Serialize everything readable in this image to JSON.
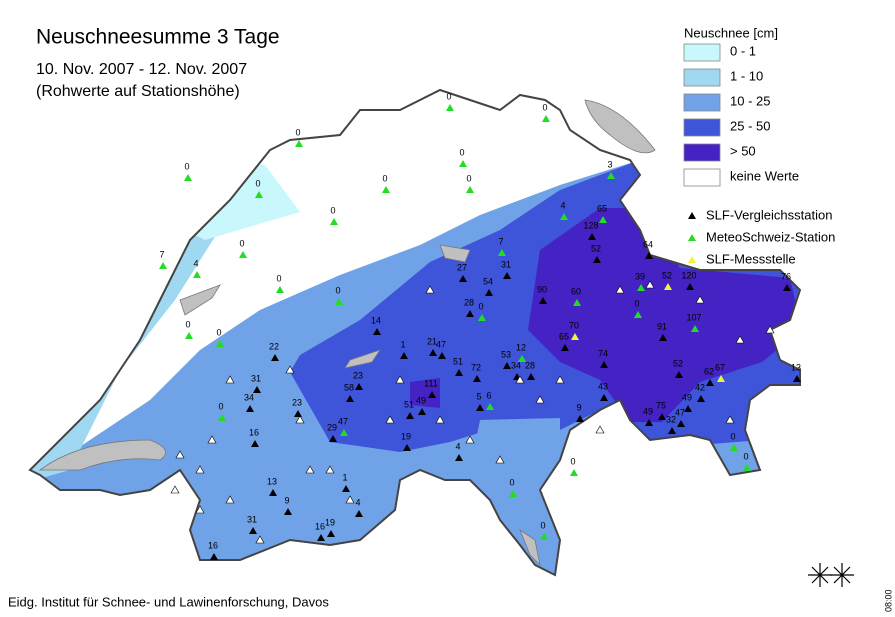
{
  "header": {
    "title": "Neuschneesumme 3 Tage",
    "subtitle": "10. Nov. 2007 - 12. Nov. 2007",
    "note": "(Rohwerte auf Stationshöhe)"
  },
  "legend": {
    "title": "Neuschnee [cm]",
    "classes": [
      {
        "label": "0 - 1",
        "color": "#c8f8fb"
      },
      {
        "label": "1 - 10",
        "color": "#9fd8f0"
      },
      {
        "label": "10 - 25",
        "color": "#6fa2e6"
      },
      {
        "label": "25 - 50",
        "color": "#3f55d9"
      },
      {
        "label": "> 50",
        "color": "#4422c4"
      },
      {
        "label": "keine Werte",
        "color": "#ffffff"
      }
    ]
  },
  "stations": [
    {
      "label": "SLF-Vergleichsstation",
      "color": "#000000",
      "values": [
        128,
        52,
        64,
        120,
        76,
        27,
        54,
        31,
        90,
        28,
        14,
        65,
        91,
        47,
        21,
        22,
        1,
        53,
        34,
        28,
        51,
        72,
        74,
        23,
        58,
        31,
        111,
        52,
        62,
        13,
        43,
        42,
        49,
        34,
        23,
        51,
        49,
        5,
        9,
        75,
        49,
        32,
        47,
        29,
        16,
        19,
        4,
        13,
        1,
        9,
        4,
        31,
        16,
        19,
        16
      ]
    },
    {
      "label": "MeteoSchweiz-Station",
      "color": "#22dd22",
      "values": [
        0,
        0,
        0,
        0,
        0,
        0,
        0,
        0,
        0,
        4,
        65,
        7,
        4,
        0,
        7,
        0,
        0,
        39,
        60,
        0,
        0,
        0,
        107,
        0,
        12,
        0,
        6,
        0,
        0,
        0,
        47,
        0,
        0,
        3
      ]
    },
    {
      "label": "SLF-Messstelle",
      "color": "#f2f23a",
      "values": [
        52,
        70,
        67
      ]
    }
  ],
  "footer": "Eidg. Institut für Schnee- und Lawinenforschung, Davos",
  "timestamp": "08:00"
}
